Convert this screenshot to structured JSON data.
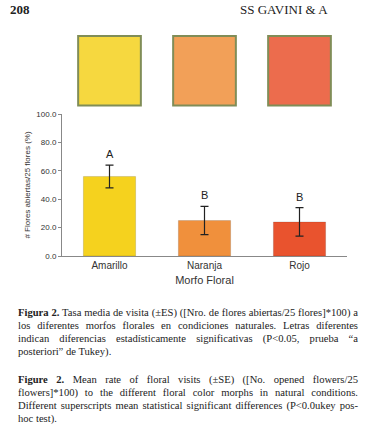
{
  "page_number": "208",
  "running_head": "SS GAVINI & A",
  "chart_data": {
    "type": "bar",
    "categories": [
      "Amarillo",
      "Naranja",
      "Rojo"
    ],
    "values": [
      56,
      25,
      24
    ],
    "errors": [
      8,
      10,
      10
    ],
    "colors": [
      "#f5d21e",
      "#f0903c",
      "#e9532e"
    ],
    "annotations": [
      {
        "category": "Amarillo",
        "text": "A"
      },
      {
        "category": "Naranja",
        "text": "B"
      },
      {
        "category": "Rojo",
        "text": "B"
      }
    ],
    "xlabel": "Morfo Floral",
    "ylabel": "# Flores abiertas/25 flores (%)",
    "ylim": [
      0,
      100
    ],
    "yticks": [
      {
        "value": 0,
        "label": "0.0"
      },
      {
        "value": 20,
        "label": "20.0"
      },
      {
        "value": 40,
        "label": "40.0"
      },
      {
        "value": 60,
        "label": "60.0"
      },
      {
        "value": 80,
        "label": "80.0"
      },
      {
        "value": 100,
        "label": "100.0"
      }
    ],
    "grid": false
  },
  "caption_es": {
    "label": "Figura 2.",
    "text": "Tasa media de visita (±ES) ([Nro. de flores abiertas/25 flores]*100) a los diferentes morfos florales en condiciones naturales. Letras diferentes indican diferencias estadísticamente significativas (P<0.05, prueba “a posteriori” de Tukey)."
  },
  "caption_en": {
    "label": "Figure 2.",
    "text": "Mean rate of floral visits (±SE) ([No. opened flowers/25 flowers]*100) to the different floral color morphs in natural conditions. Different superscripts mean statistical significant differences (P<0.0ukey pos-hoc test)."
  }
}
